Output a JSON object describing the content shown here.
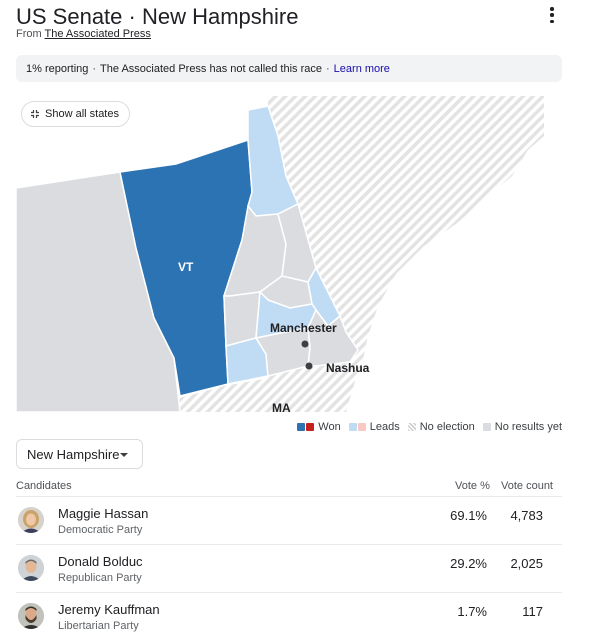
{
  "header": {
    "title": "US Senate · New Hampshire",
    "source_prefix": "From",
    "source_link": "The Associated Press",
    "menu_icon": "more-vert-icon"
  },
  "status": {
    "reporting": "1% reporting",
    "separator": "·",
    "called": "The Associated Press has not called this race",
    "learn_more": "Learn more"
  },
  "map": {
    "show_all_states": "Show all states",
    "labels": {
      "vt": "VT",
      "manchester": "Manchester",
      "nashua": "Nashua",
      "ma": "MA"
    },
    "colors": {
      "won_blue": "#2b73b3",
      "leads_blue": "#c0dcf5",
      "no_results": "#dadce0"
    }
  },
  "legend": {
    "won": "Won",
    "leads": "Leads",
    "no_election": "No election",
    "no_results": "No results yet",
    "colors": {
      "won_blue": "#2b73b3",
      "won_red": "#c5221f",
      "leads_blue": "#c0dcf5",
      "leads_red": "#f8c9c4",
      "no_results": "#dadce0"
    }
  },
  "selector": {
    "value": "New Hampshire"
  },
  "table": {
    "headers": {
      "candidates": "Candidates",
      "vote_pct": "Vote %",
      "vote_count": "Vote count"
    },
    "rows": [
      {
        "name": "Maggie Hassan",
        "party": "Democratic Party",
        "pct": "69.1%",
        "count": "4,783"
      },
      {
        "name": "Donald Bolduc",
        "party": "Republican Party",
        "pct": "29.2%",
        "count": "2,025"
      },
      {
        "name": "Jeremy Kauffman",
        "party": "Libertarian Party",
        "pct": "1.7%",
        "count": "117"
      }
    ]
  }
}
